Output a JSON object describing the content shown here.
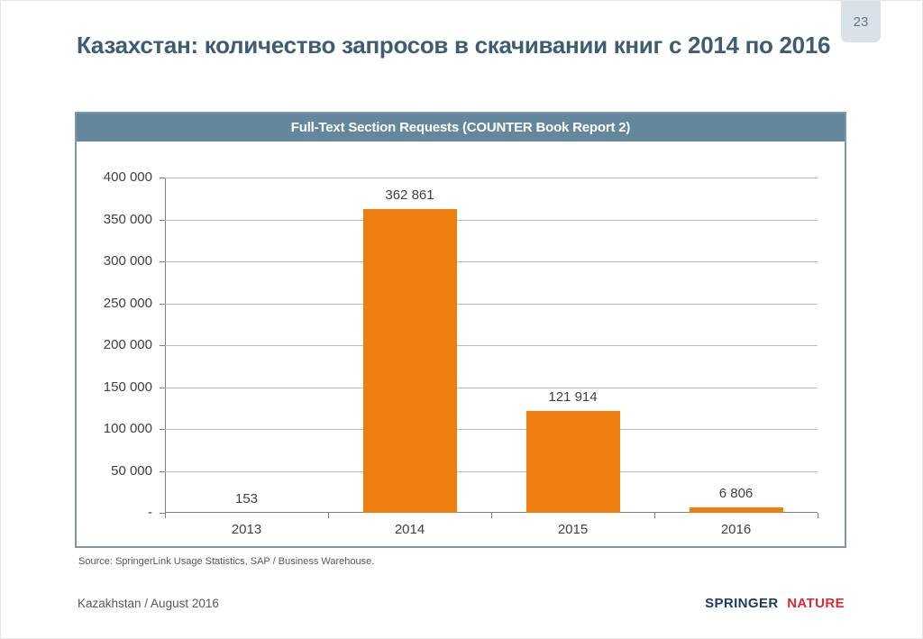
{
  "slide": {
    "page_number": "23",
    "title": "Казахстан: количество запросов в скачивании книг с 2014 по 2016",
    "source": "Source: SpringerLink Usage Statistics, SAP / Business Warehouse.",
    "footer_left": "Kazakhstan / August 2016",
    "logo": {
      "springer": "SPRINGER",
      "nature": "NATURE"
    }
  },
  "chart_data": {
    "type": "bar",
    "title": "Full-Text Section Requests (COUNTER Book Report 2)",
    "categories": [
      "2013",
      "2014",
      "2015",
      "2016"
    ],
    "values": [
      153,
      362861,
      121914,
      6806
    ],
    "value_labels": [
      "153",
      "362 861",
      "121 914",
      "6 806"
    ],
    "xlabel": "",
    "ylabel": "",
    "ylim": [
      0,
      400000
    ],
    "ytick_step": 50000,
    "ytick_labels": [
      "-",
      "50 000",
      "100 000",
      "150 000",
      "200 000",
      "250 000",
      "300 000",
      "350 000",
      "400 000"
    ],
    "grid": true,
    "legend": false,
    "bar_color": "#ee7e10"
  },
  "colors": {
    "title_text": "#3e5c75",
    "chart_header_bg": "#64879e",
    "chart_frame_border": "#7b99ab",
    "bar_orange": "#ee7e10",
    "page_tab_bg": "#d9e2e9",
    "logo_springer_blue": "#1f3a60",
    "logo_nature_red": "#d92b32"
  }
}
